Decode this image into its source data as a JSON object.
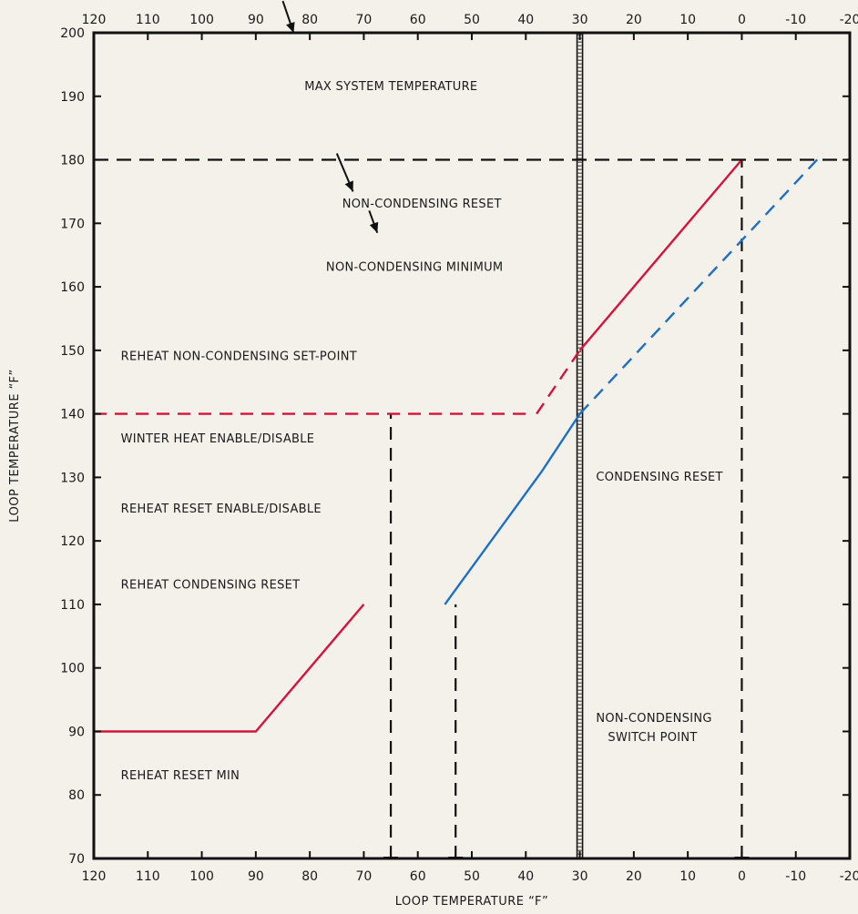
{
  "chart_data": {
    "type": "line",
    "xlabel": "LOOP TEMPERATURE “F”",
    "ylabel": "LOOP TEMPERATURE “F”",
    "xlim": [
      120,
      -20
    ],
    "x_reversed": true,
    "ylim": [
      70,
      200
    ],
    "x_ticks": [
      120,
      110,
      100,
      90,
      80,
      70,
      60,
      50,
      40,
      30,
      20,
      10,
      0,
      -10,
      -20
    ],
    "y_ticks": [
      70,
      80,
      90,
      100,
      110,
      120,
      130,
      140,
      150,
      160,
      170,
      180,
      190,
      200
    ],
    "colors": {
      "red": "#d4133c",
      "blue": "#1b6fc4",
      "black": "#111111"
    },
    "series": [
      {
        "color": "red",
        "dashed": false,
        "x": [
          120,
          90,
          70
        ],
        "y": [
          90,
          90,
          110
        ]
      },
      {
        "color": "blue",
        "dashed": false,
        "x": [
          55,
          37,
          30
        ],
        "y": [
          110,
          131,
          140
        ]
      },
      {
        "color": "blue",
        "dashed": true,
        "x": [
          30,
          -15
        ],
        "y": [
          140,
          181
        ]
      },
      {
        "color": "red",
        "dashed": false,
        "x": [
          30,
          0
        ],
        "y": [
          150,
          180
        ]
      },
      {
        "color": "red",
        "dashed": true,
        "x": [
          38,
          30
        ],
        "y": [
          140,
          150
        ]
      },
      {
        "color": "red",
        "dashed": true,
        "x": [
          120,
          40
        ],
        "y": [
          140,
          140
        ]
      },
      {
        "color": "black",
        "dashed": true,
        "x": [
          120,
          -20
        ],
        "y": [
          180,
          180
        ]
      }
    ],
    "vertical_lines": [
      {
        "x": 65,
        "y_from": 70,
        "y_to": 140,
        "style": "dashed"
      },
      {
        "x": 53,
        "y_from": 70,
        "y_to": 110,
        "style": "dashed"
      },
      {
        "x": 30,
        "y_from": 70,
        "y_to": 200,
        "style": "double"
      },
      {
        "x": 0,
        "y_from": 70,
        "y_to": 180,
        "style": "dashed"
      }
    ],
    "annotations": [
      {
        "text": "MAX SYSTEM TEMPERATURE",
        "x": 81,
        "y": 191
      },
      {
        "text": "NON-CONDENSING RESET",
        "x": 74,
        "y": 172.5
      },
      {
        "text": "NON-CONDENSING MINIMUM",
        "x": 77,
        "y": 162.5
      },
      {
        "text": "REHEAT NON-CONDENSING SET-POINT",
        "x": 115,
        "y": 148.5
      },
      {
        "text": "WINTER HEAT ENABLE/DISABLE",
        "x": 115,
        "y": 135.5
      },
      {
        "text": "REHEAT RESET ENABLE/DISABLE",
        "x": 115,
        "y": 124.5
      },
      {
        "text": "REHEAT CONDENSING RESET",
        "x": 115,
        "y": 112.5
      },
      {
        "text": "REHEAT RESET MIN",
        "x": 115,
        "y": 82.5
      },
      {
        "text": "CONDENSING RESET",
        "x": 27,
        "y": 129.5
      },
      {
        "text": "NON-CONDENSING",
        "x": 27,
        "y": 91.5
      },
      {
        "text": "SWITCH POINT",
        "x": 24.8,
        "y": 88.5
      }
    ],
    "arrows": [
      {
        "from": [
          85,
          205
        ],
        "to": [
          83,
          200
        ]
      },
      {
        "from": [
          75,
          181
        ],
        "to": [
          72,
          175
        ]
      },
      {
        "from": [
          69,
          172
        ],
        "to": [
          67.5,
          168.5
        ]
      }
    ]
  }
}
